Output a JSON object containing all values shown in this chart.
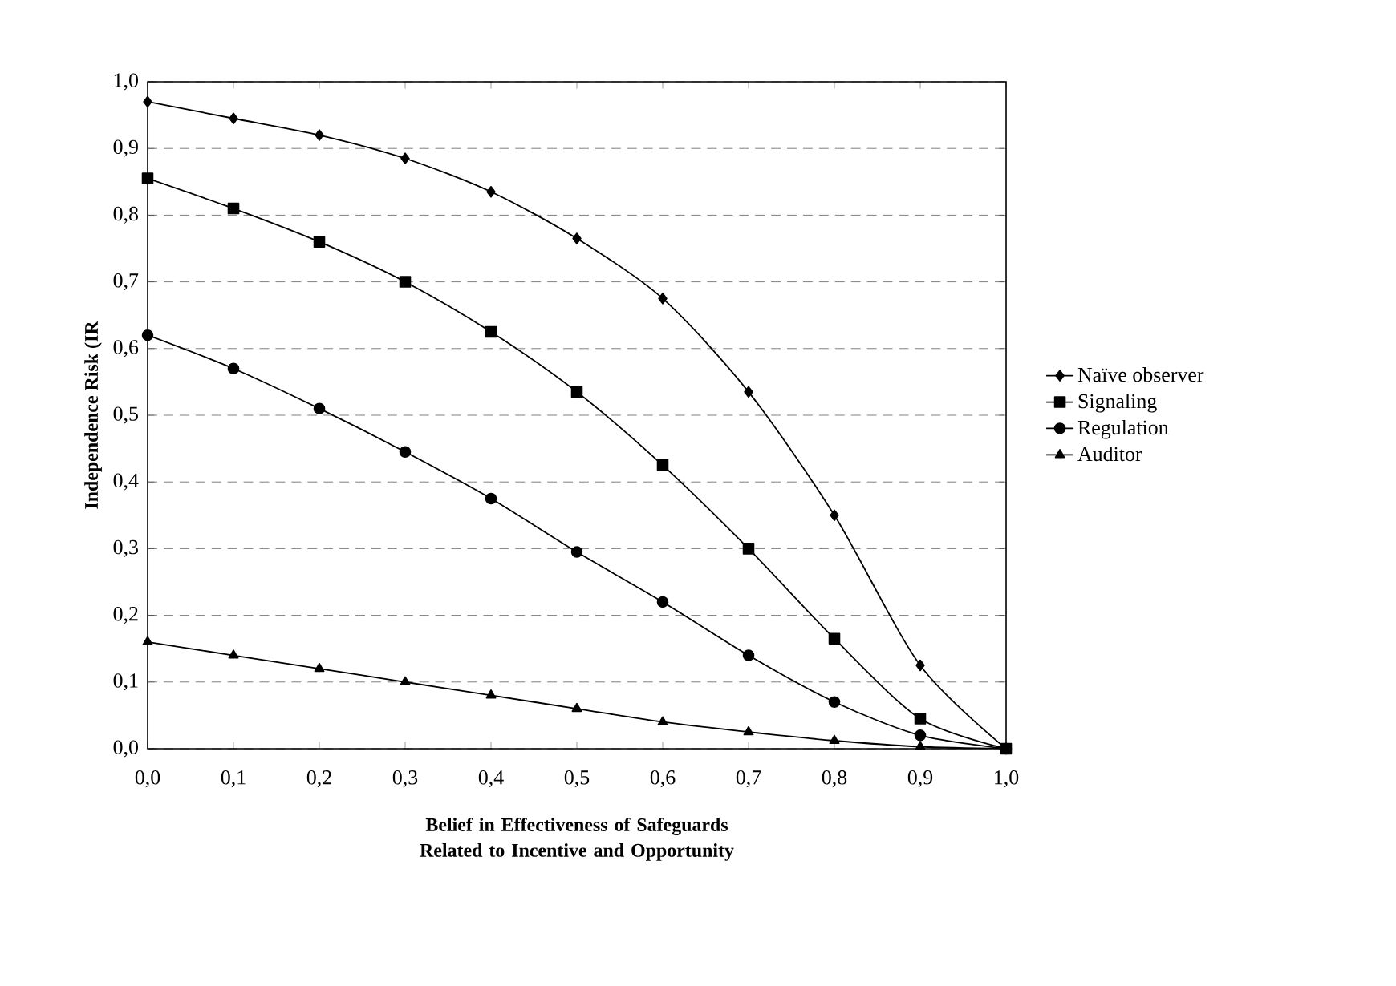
{
  "chart_data": {
    "type": "line",
    "xlabel": "Belief in Effectiveness of Safeguards Related to Incentive and Opportunity",
    "ylabel": "Independence Risk (IR",
    "x": [
      0,
      0.1,
      0.2,
      0.3,
      0.4,
      0.5,
      0.6,
      0.7,
      0.8,
      0.9,
      1.0
    ],
    "series": [
      {
        "name": "Naïve observer",
        "color": "#000000",
        "marker": "diamond",
        "values": [
          0.97,
          0.945,
          0.92,
          0.885,
          0.835,
          0.765,
          0.675,
          0.535,
          0.35,
          0.125,
          0.0
        ]
      },
      {
        "name": "Signaling",
        "color": "#000000",
        "marker": "square",
        "values": [
          0.855,
          0.81,
          0.76,
          0.7,
          0.625,
          0.535,
          0.425,
          0.3,
          0.165,
          0.045,
          0.0
        ]
      },
      {
        "name": "Regulation",
        "color": "#000000",
        "marker": "circle",
        "values": [
          0.62,
          0.57,
          0.51,
          0.445,
          0.375,
          0.295,
          0.22,
          0.14,
          0.07,
          0.02,
          0.0
        ]
      },
      {
        "name": "Auditor",
        "color": "#000000",
        "marker": "triangle",
        "values": [
          0.16,
          0.14,
          0.12,
          0.1,
          0.08,
          0.06,
          0.04,
          0.025,
          0.012,
          0.003,
          0.0
        ]
      }
    ],
    "xlim": [
      0,
      1
    ],
    "ylim": [
      0,
      1
    ],
    "xticks": [
      {
        "value": 0,
        "label": "0,0"
      },
      {
        "value": 0.1,
        "label": "0,1"
      },
      {
        "value": 0.2,
        "label": "0,2"
      },
      {
        "value": 0.3,
        "label": "0,3"
      },
      {
        "value": 0.4,
        "label": "0,4"
      },
      {
        "value": 0.5,
        "label": "0,5"
      },
      {
        "value": 0.6,
        "label": "0,6"
      },
      {
        "value": 0.7,
        "label": "0,7"
      },
      {
        "value": 0.8,
        "label": "0,8"
      },
      {
        "value": 0.9,
        "label": "0,9"
      },
      {
        "value": 1.0,
        "label": "1,0"
      }
    ],
    "yticks": [
      {
        "value": 0,
        "label": "0,0"
      },
      {
        "value": 0.1,
        "label": "0,1"
      },
      {
        "value": 0.2,
        "label": "0,2"
      },
      {
        "value": 0.3,
        "label": "0,3"
      },
      {
        "value": 0.4,
        "label": "0,4"
      },
      {
        "value": 0.5,
        "label": "0,5"
      },
      {
        "value": 0.6,
        "label": "0,6"
      },
      {
        "value": 0.7,
        "label": "0,7"
      },
      {
        "value": 0.8,
        "label": "0,8"
      },
      {
        "value": 0.9,
        "label": "0,9"
      },
      {
        "value": 1.0,
        "label": "1,0"
      }
    ],
    "grid": "y",
    "legend": "right",
    "line_style": "solid"
  }
}
